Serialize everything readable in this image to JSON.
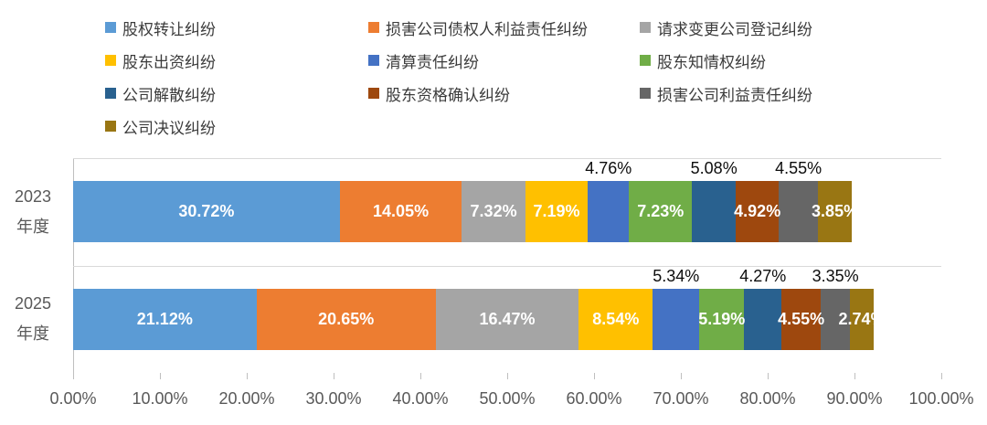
{
  "chart_data": {
    "type": "bar",
    "subtype": "horizontal-stacked",
    "title": "",
    "xlabel": "",
    "ylabel": "",
    "value_suffix": "%",
    "xlim": [
      0,
      100
    ],
    "grid": "vertical-gridlines-off-category-separators-on",
    "legend_position": "top",
    "categories": [
      {
        "label": "2023年度",
        "lines": [
          "2023",
          "年度"
        ]
      },
      {
        "label": "2025年度",
        "lines": [
          "2025",
          "年度"
        ]
      }
    ],
    "x_axis_ticks": [
      "0.00%",
      "10.00%",
      "20.00%",
      "30.00%",
      "40.00%",
      "50.00%",
      "60.00%",
      "70.00%",
      "80.00%",
      "90.00%",
      "100.00%"
    ],
    "series": [
      {
        "name": "股权转让纠纷",
        "color": "#5B9BD5",
        "values": [
          30.72,
          21.12
        ],
        "label_position": "inside"
      },
      {
        "name": "损害公司债权人利益责任纠纷",
        "color": "#ED7D31",
        "values": [
          14.05,
          20.65
        ],
        "label_position": "inside"
      },
      {
        "name": "请求变更公司登记纠纷",
        "color": "#A5A5A5",
        "values": [
          7.32,
          16.47
        ],
        "label_position": "inside"
      },
      {
        "name": "股东出资纠纷",
        "color": "#FFC000",
        "values": [
          7.19,
          8.54
        ],
        "label_position": "inside"
      },
      {
        "name": "清算责任纠纷",
        "color": "#4472C4",
        "values": [
          4.76,
          5.34
        ],
        "label_position": "above"
      },
      {
        "name": "股东知情权纠纷",
        "color": "#70AD47",
        "values": [
          7.23,
          5.19
        ],
        "label_position": "inside"
      },
      {
        "name": "公司解散纠纷",
        "color": "#29618F",
        "values": [
          5.08,
          4.27
        ],
        "label_position": "above"
      },
      {
        "name": "股东资格确认纠纷",
        "color": "#9E480E",
        "values": [
          4.92,
          4.55
        ],
        "label_position": "inside"
      },
      {
        "name": "损害公司利益责任纠纷",
        "color": "#666666",
        "values": [
          4.55,
          3.35
        ],
        "label_position": "above"
      },
      {
        "name": "公司决议纠纷",
        "color": "#997613",
        "values": [
          3.85,
          2.74
        ],
        "label_position": "inside"
      }
    ],
    "colors": {
      "gridline": "#d9d9d9",
      "axis_line": "#bfbfbf",
      "axis_text": "#595959",
      "legend_text": "#3b3b3b",
      "inside_label_text": "#ffffff",
      "above_label_text": "#0d0d0d"
    }
  }
}
